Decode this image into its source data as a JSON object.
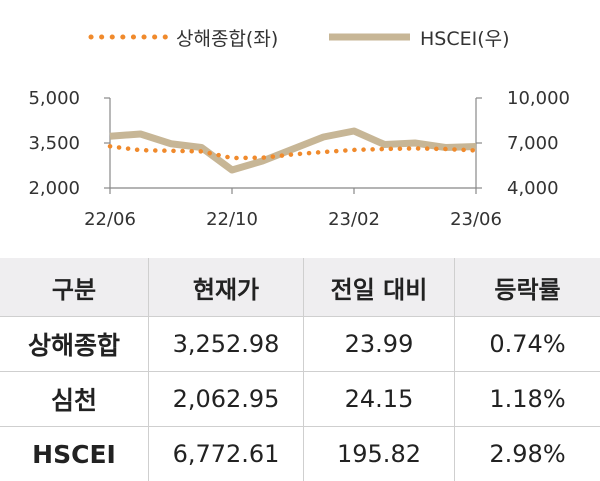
{
  "chart_data": {
    "type": "line",
    "legend": [
      {
        "name": "상해종합(좌)",
        "color": "#f08a2c",
        "style": "dotted"
      },
      {
        "name": "HSCEI(우)",
        "color": "#c7b696",
        "style": "solid"
      }
    ],
    "x_ticks": [
      "22/06",
      "22/10",
      "23/02",
      "23/06"
    ],
    "y_left": {
      "ticks": [
        "5,000",
        "3,500",
        "2,000"
      ],
      "values": [
        5000,
        3500,
        2000
      ],
      "range": [
        2000,
        5000
      ]
    },
    "y_right": {
      "ticks": [
        "10,000",
        "7,000",
        "4,000"
      ],
      "values": [
        10000,
        7000,
        4000
      ],
      "range": [
        4000,
        10000
      ]
    },
    "x": [
      "22/06",
      "22/07",
      "22/08",
      "22/09",
      "22/10",
      "22/11",
      "22/12",
      "23/01",
      "23/02",
      "23/03",
      "23/04",
      "23/05",
      "23/06"
    ],
    "series": [
      {
        "name": "상해종합(좌)",
        "axis": "left",
        "values": [
          3390,
          3260,
          3240,
          3220,
          3000,
          3010,
          3120,
          3200,
          3270,
          3300,
          3320,
          3300,
          3250
        ]
      },
      {
        "name": "HSCEI(우)",
        "axis": "right",
        "values": [
          7450,
          7600,
          6950,
          6700,
          5200,
          5800,
          6600,
          7400,
          7800,
          6900,
          7000,
          6700,
          6770
        ]
      }
    ]
  },
  "table": {
    "headers": [
      "구분",
      "현재가",
      "전일 대비",
      "등락률"
    ],
    "rows": [
      [
        "상해종합",
        "3,252.98",
        "23.99",
        "0.74%"
      ],
      [
        "심천",
        "2,062.95",
        "24.15",
        "1.18%"
      ],
      [
        "HSCEI",
        "6,772.61",
        "195.82",
        "2.98%"
      ]
    ]
  }
}
